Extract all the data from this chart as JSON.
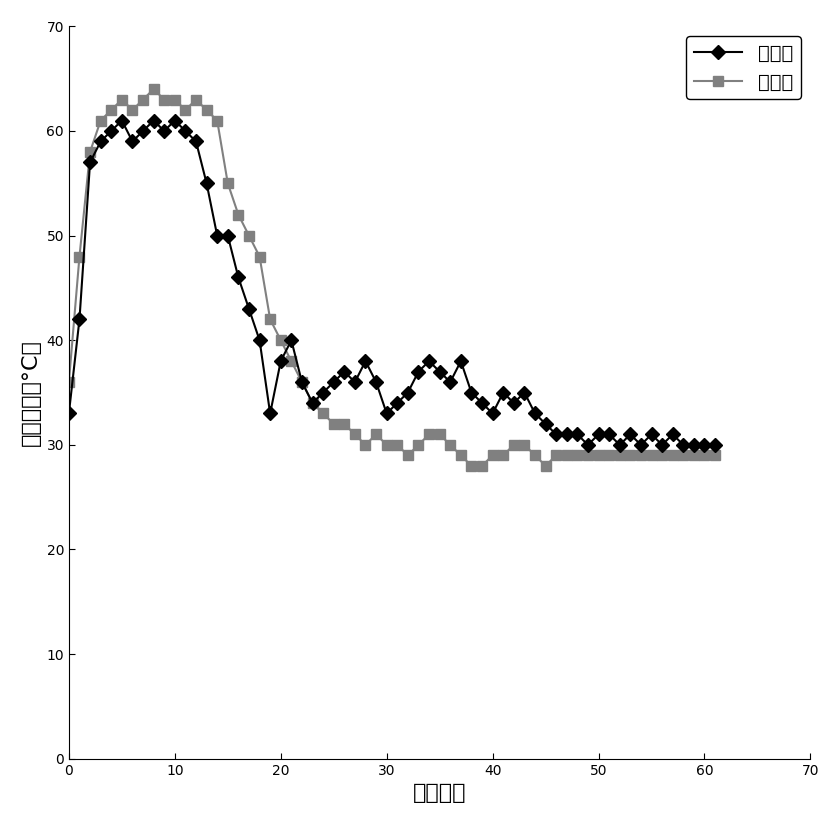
{
  "control_x": [
    0,
    1,
    2,
    3,
    4,
    5,
    6,
    7,
    8,
    9,
    10,
    11,
    12,
    13,
    14,
    15,
    16,
    17,
    18,
    19,
    20,
    21,
    22,
    23,
    24,
    25,
    26,
    27,
    28,
    29,
    30,
    31,
    32,
    33,
    34,
    35,
    36,
    37,
    38,
    39,
    40,
    41,
    42,
    43,
    44,
    45,
    46,
    47,
    48,
    49,
    50,
    51,
    52,
    53,
    54,
    55,
    56,
    57,
    58,
    59,
    60,
    61
  ],
  "control_y": [
    33,
    42,
    57,
    59,
    60,
    61,
    59,
    60,
    61,
    60,
    61,
    60,
    59,
    55,
    50,
    50,
    46,
    43,
    40,
    33,
    38,
    40,
    36,
    34,
    35,
    36,
    37,
    36,
    38,
    36,
    33,
    34,
    35,
    37,
    38,
    37,
    36,
    38,
    35,
    34,
    33,
    35,
    34,
    35,
    33,
    32,
    31,
    31,
    31,
    30,
    31,
    31,
    30,
    31,
    30,
    31,
    30,
    31,
    30,
    30,
    30,
    30
  ],
  "bacteria_x": [
    0,
    1,
    2,
    3,
    4,
    5,
    6,
    7,
    8,
    9,
    10,
    11,
    12,
    13,
    14,
    15,
    16,
    17,
    18,
    19,
    20,
    21,
    22,
    23,
    24,
    25,
    26,
    27,
    28,
    29,
    30,
    31,
    32,
    33,
    34,
    35,
    36,
    37,
    38,
    39,
    40,
    41,
    42,
    43,
    44,
    45,
    46,
    47,
    48,
    49,
    50,
    51,
    52,
    53,
    54,
    55,
    56,
    57,
    58,
    59,
    60,
    61
  ],
  "bacteria_y": [
    36,
    48,
    58,
    61,
    62,
    63,
    62,
    63,
    64,
    63,
    63,
    62,
    63,
    62,
    61,
    55,
    52,
    50,
    48,
    42,
    40,
    38,
    36,
    34,
    33,
    32,
    32,
    31,
    30,
    31,
    30,
    30,
    29,
    30,
    31,
    31,
    30,
    29,
    28,
    28,
    29,
    29,
    30,
    30,
    29,
    28,
    29,
    29,
    29,
    29,
    29,
    29,
    29,
    29,
    29,
    29,
    29,
    29,
    29,
    29,
    29,
    29
  ],
  "xlabel": "发酵天数",
  "ylabel": "堆体温度（°C）",
  "legend1": "对照组",
  "legend2": "菌剂组",
  "xlim": [
    0,
    70
  ],
  "ylim": [
    0,
    70
  ],
  "xticks": [
    0,
    10,
    20,
    30,
    40,
    50,
    60,
    70
  ],
  "yticks": [
    0,
    10,
    20,
    30,
    40,
    50,
    60,
    70
  ],
  "control_color": "#000000",
  "bacteria_color": "#808080",
  "title_fontsize": 14,
  "label_fontsize": 16
}
